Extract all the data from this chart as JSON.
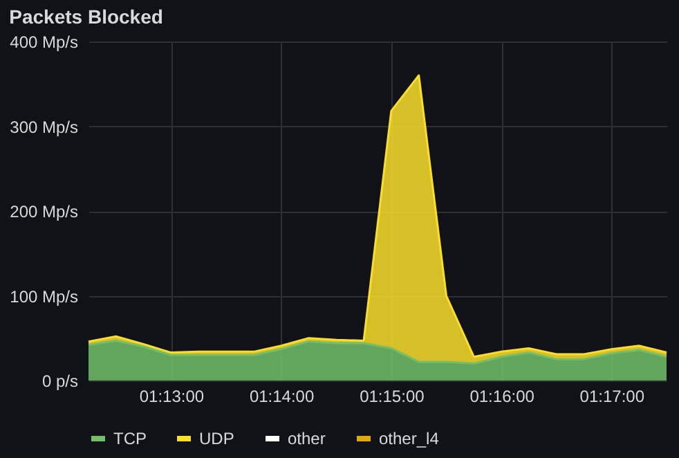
{
  "chart_data": {
    "type": "area",
    "title": "Packets Blocked",
    "stacked": true,
    "x": [
      1.20417,
      1.20833,
      1.2125,
      1.21667,
      1.22083,
      1.225,
      1.22917,
      1.23333,
      1.2375,
      1.24167,
      1.24583,
      1.25,
      1.25417,
      1.25833,
      1.2625,
      1.26667,
      1.27083,
      1.275,
      1.27917,
      1.28333,
      1.2875,
      1.29167
    ],
    "series": [
      {
        "name": "TCP",
        "color": "#73bf69",
        "values": [
          42,
          47,
          40,
          30,
          30,
          30,
          30,
          37,
          46,
          44,
          44,
          38,
          22,
          22,
          20,
          28,
          33,
          25,
          25,
          32,
          36,
          28
        ]
      },
      {
        "name": "UDP",
        "color": "#fade2a",
        "values": [
          4,
          5,
          3,
          3,
          4,
          4,
          4,
          4,
          4,
          4,
          3,
          280,
          338,
          78,
          8,
          6,
          5,
          6,
          6,
          5,
          5,
          5
        ]
      },
      {
        "name": "other",
        "color": "#ffffff",
        "values": [
          null,
          null,
          null,
          null,
          null,
          null,
          null,
          null,
          null,
          null,
          null,
          null,
          null,
          null,
          null,
          null,
          null,
          null,
          null,
          null,
          null,
          null
        ]
      },
      {
        "name": "other_l4",
        "color": "#e0a800",
        "values": [
          null,
          null,
          null,
          null,
          null,
          null,
          null,
          null,
          null,
          null,
          null,
          null,
          null,
          null,
          null,
          null,
          null,
          null,
          null,
          null,
          null,
          null
        ]
      }
    ],
    "xlim": [
      1.20417,
      1.29167
    ],
    "xticks": [
      {
        "value": 1.21667,
        "label": "01:13:00"
      },
      {
        "value": 1.23333,
        "label": "01:14:00"
      },
      {
        "value": 1.25,
        "label": "01:15:00"
      },
      {
        "value": 1.26667,
        "label": "01:16:00"
      },
      {
        "value": 1.28333,
        "label": "01:17:00"
      }
    ],
    "ylim": [
      0,
      400
    ],
    "yticks": [
      {
        "value": 0,
        "label": "0 p/s"
      },
      {
        "value": 100,
        "label": "100 Mp/s"
      },
      {
        "value": 200,
        "label": "200 Mp/s"
      },
      {
        "value": 300,
        "label": "300 Mp/s"
      },
      {
        "value": 400,
        "label": "400 Mp/s"
      }
    ],
    "grid": true,
    "legend": "bottom"
  }
}
